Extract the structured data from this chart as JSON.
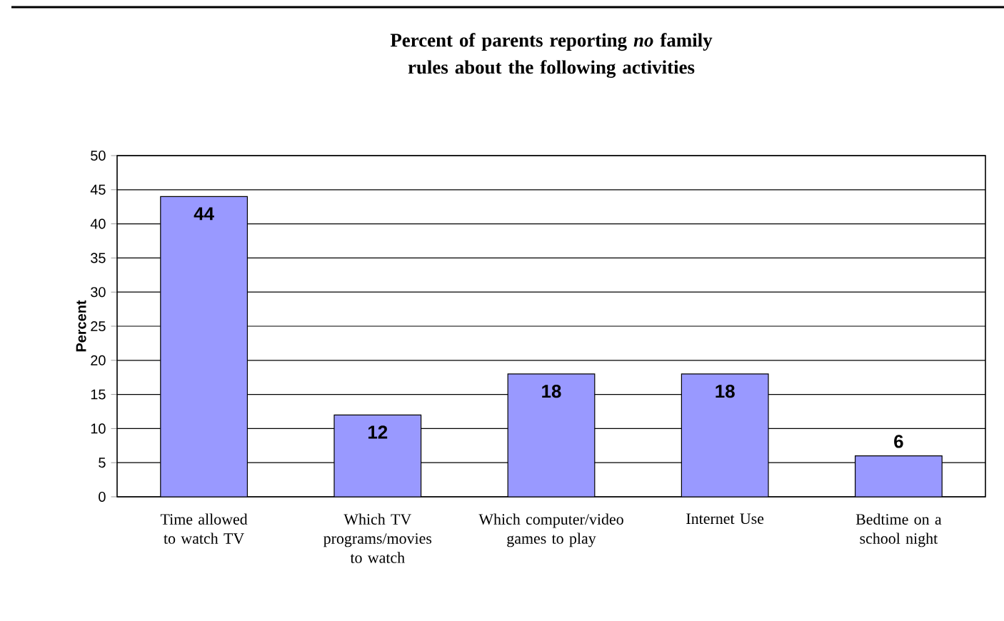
{
  "chart_data": {
    "type": "bar",
    "title": "Percent of parents reporting *no* family rules about the following activities",
    "ylabel": "Percent",
    "categories": [
      "Time allowed to watch TV",
      "Which TV programs/movies to watch",
      "Which computer/video games to play",
      "Internet Use",
      "Bedtime on a school night"
    ],
    "values": [
      44,
      12,
      18,
      18,
      6
    ],
    "color": "#9999ff",
    "ylim": [
      0,
      50
    ],
    "yticks": [
      0,
      5,
      10,
      15,
      20,
      25,
      30,
      35,
      40,
      45,
      50
    ],
    "grid": "y",
    "data_labels": true
  }
}
